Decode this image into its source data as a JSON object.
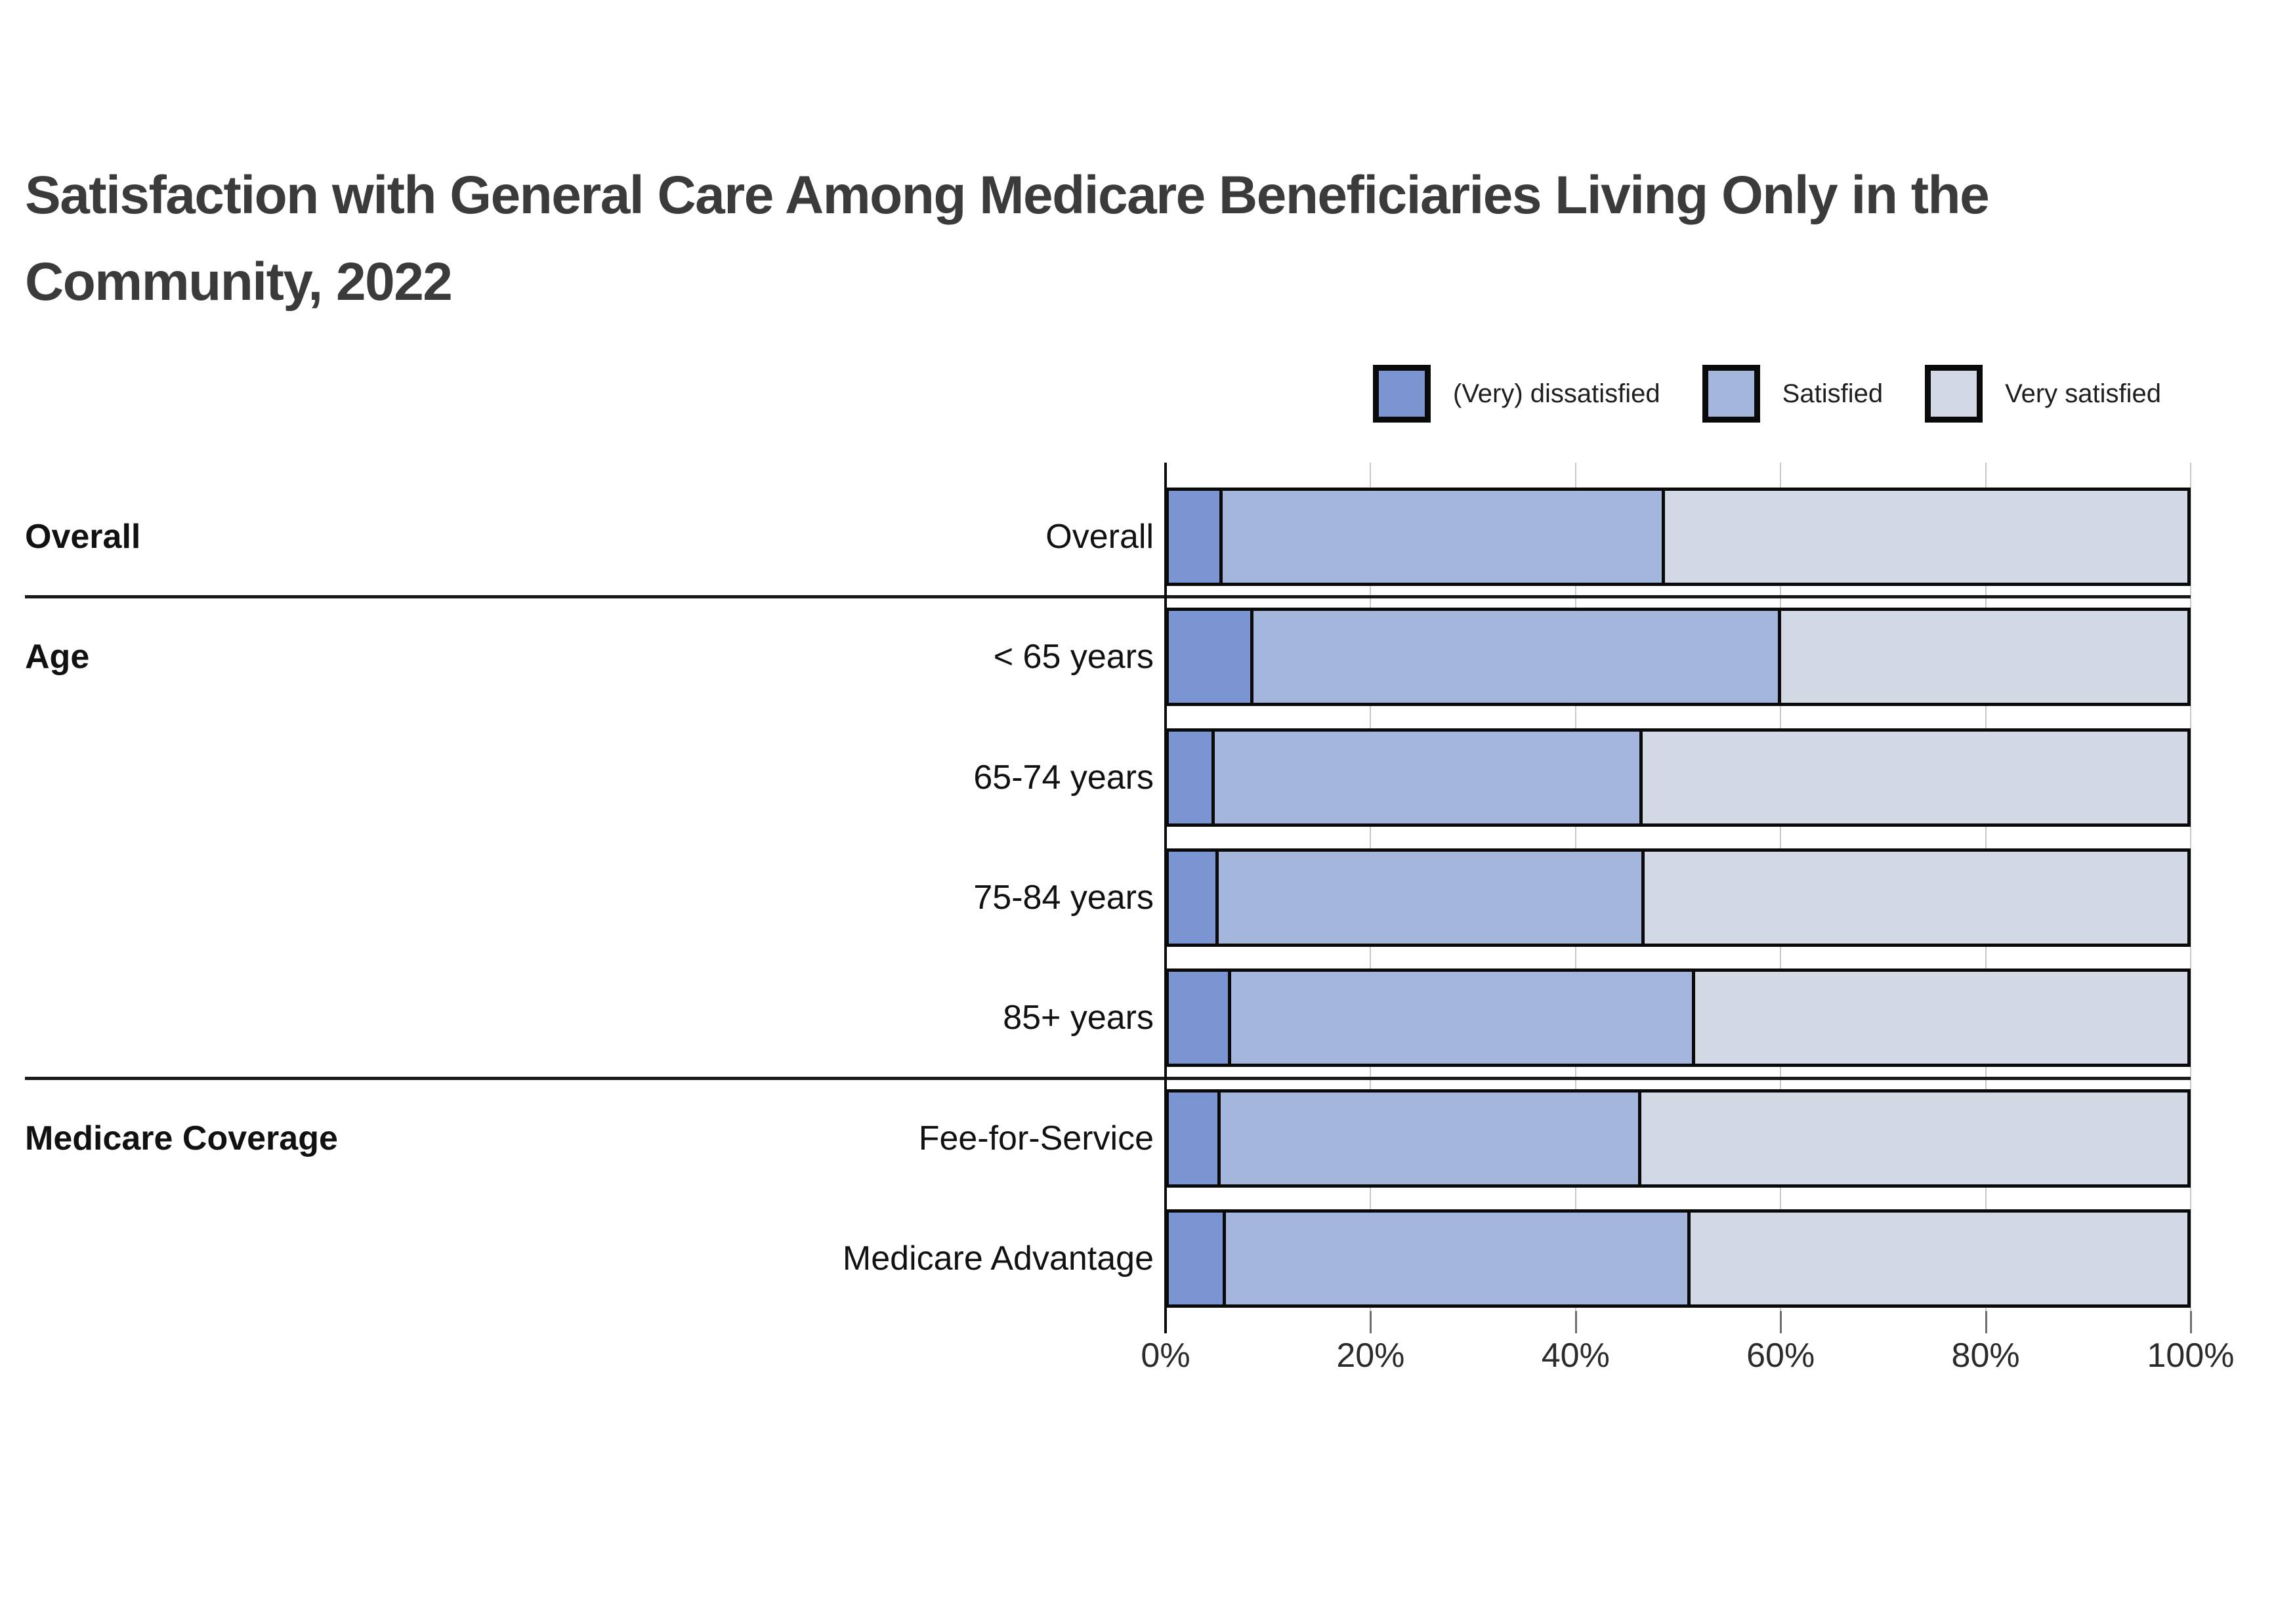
{
  "title": "Satisfaction with General Care Among Medicare Beneficiaries Living Only in the Community, 2022",
  "legend": [
    {
      "label": "(Very) dissatisfied",
      "color": "#7a95d2"
    },
    {
      "label": "Satisfied",
      "color": "#a4b6dc"
    },
    {
      "label": "Very satisfied",
      "color": "#d3d9e4"
    }
  ],
  "chart_data": {
    "type": "bar",
    "orientation": "horizontal",
    "stacked": true,
    "title": "Satisfaction with General Care Among Medicare Beneficiaries Living Only in the Community, 2022",
    "xlabel": "",
    "ylabel": "",
    "xlim": [
      0,
      100
    ],
    "grid": true,
    "legend_position": "top-right",
    "x_axis_ticks": [
      "0%",
      "20%",
      "40%",
      "60%",
      "80%",
      "100%"
    ],
    "categories": [
      "Overall",
      "< 65 years",
      "65-74 years",
      "75-84 years",
      "85+ years",
      "Fee-for-Service",
      "Medicare Advantage"
    ],
    "groups": [
      {
        "label": "Overall",
        "start_row": 0,
        "row_count": 1
      },
      {
        "label": "Age",
        "start_row": 1,
        "row_count": 4
      },
      {
        "label": "Medicare Coverage",
        "start_row": 5,
        "row_count": 2
      }
    ],
    "series": [
      {
        "name": "(Very) dissatisfied",
        "color": "#7a95d2",
        "values": [
          5.3,
          8.3,
          4.5,
          4.9,
          6.1,
          5.1,
          5.6
        ]
      },
      {
        "name": "Satisfied",
        "color": "#a4b6dc",
        "values": [
          43.4,
          51.8,
          42.0,
          41.8,
          45.6,
          41.3,
          45.6
        ]
      },
      {
        "name": "Very satisfied",
        "color": "#d3d9e4",
        "values": [
          51.3,
          39.9,
          53.5,
          53.3,
          48.3,
          53.6,
          48.8
        ]
      }
    ]
  }
}
